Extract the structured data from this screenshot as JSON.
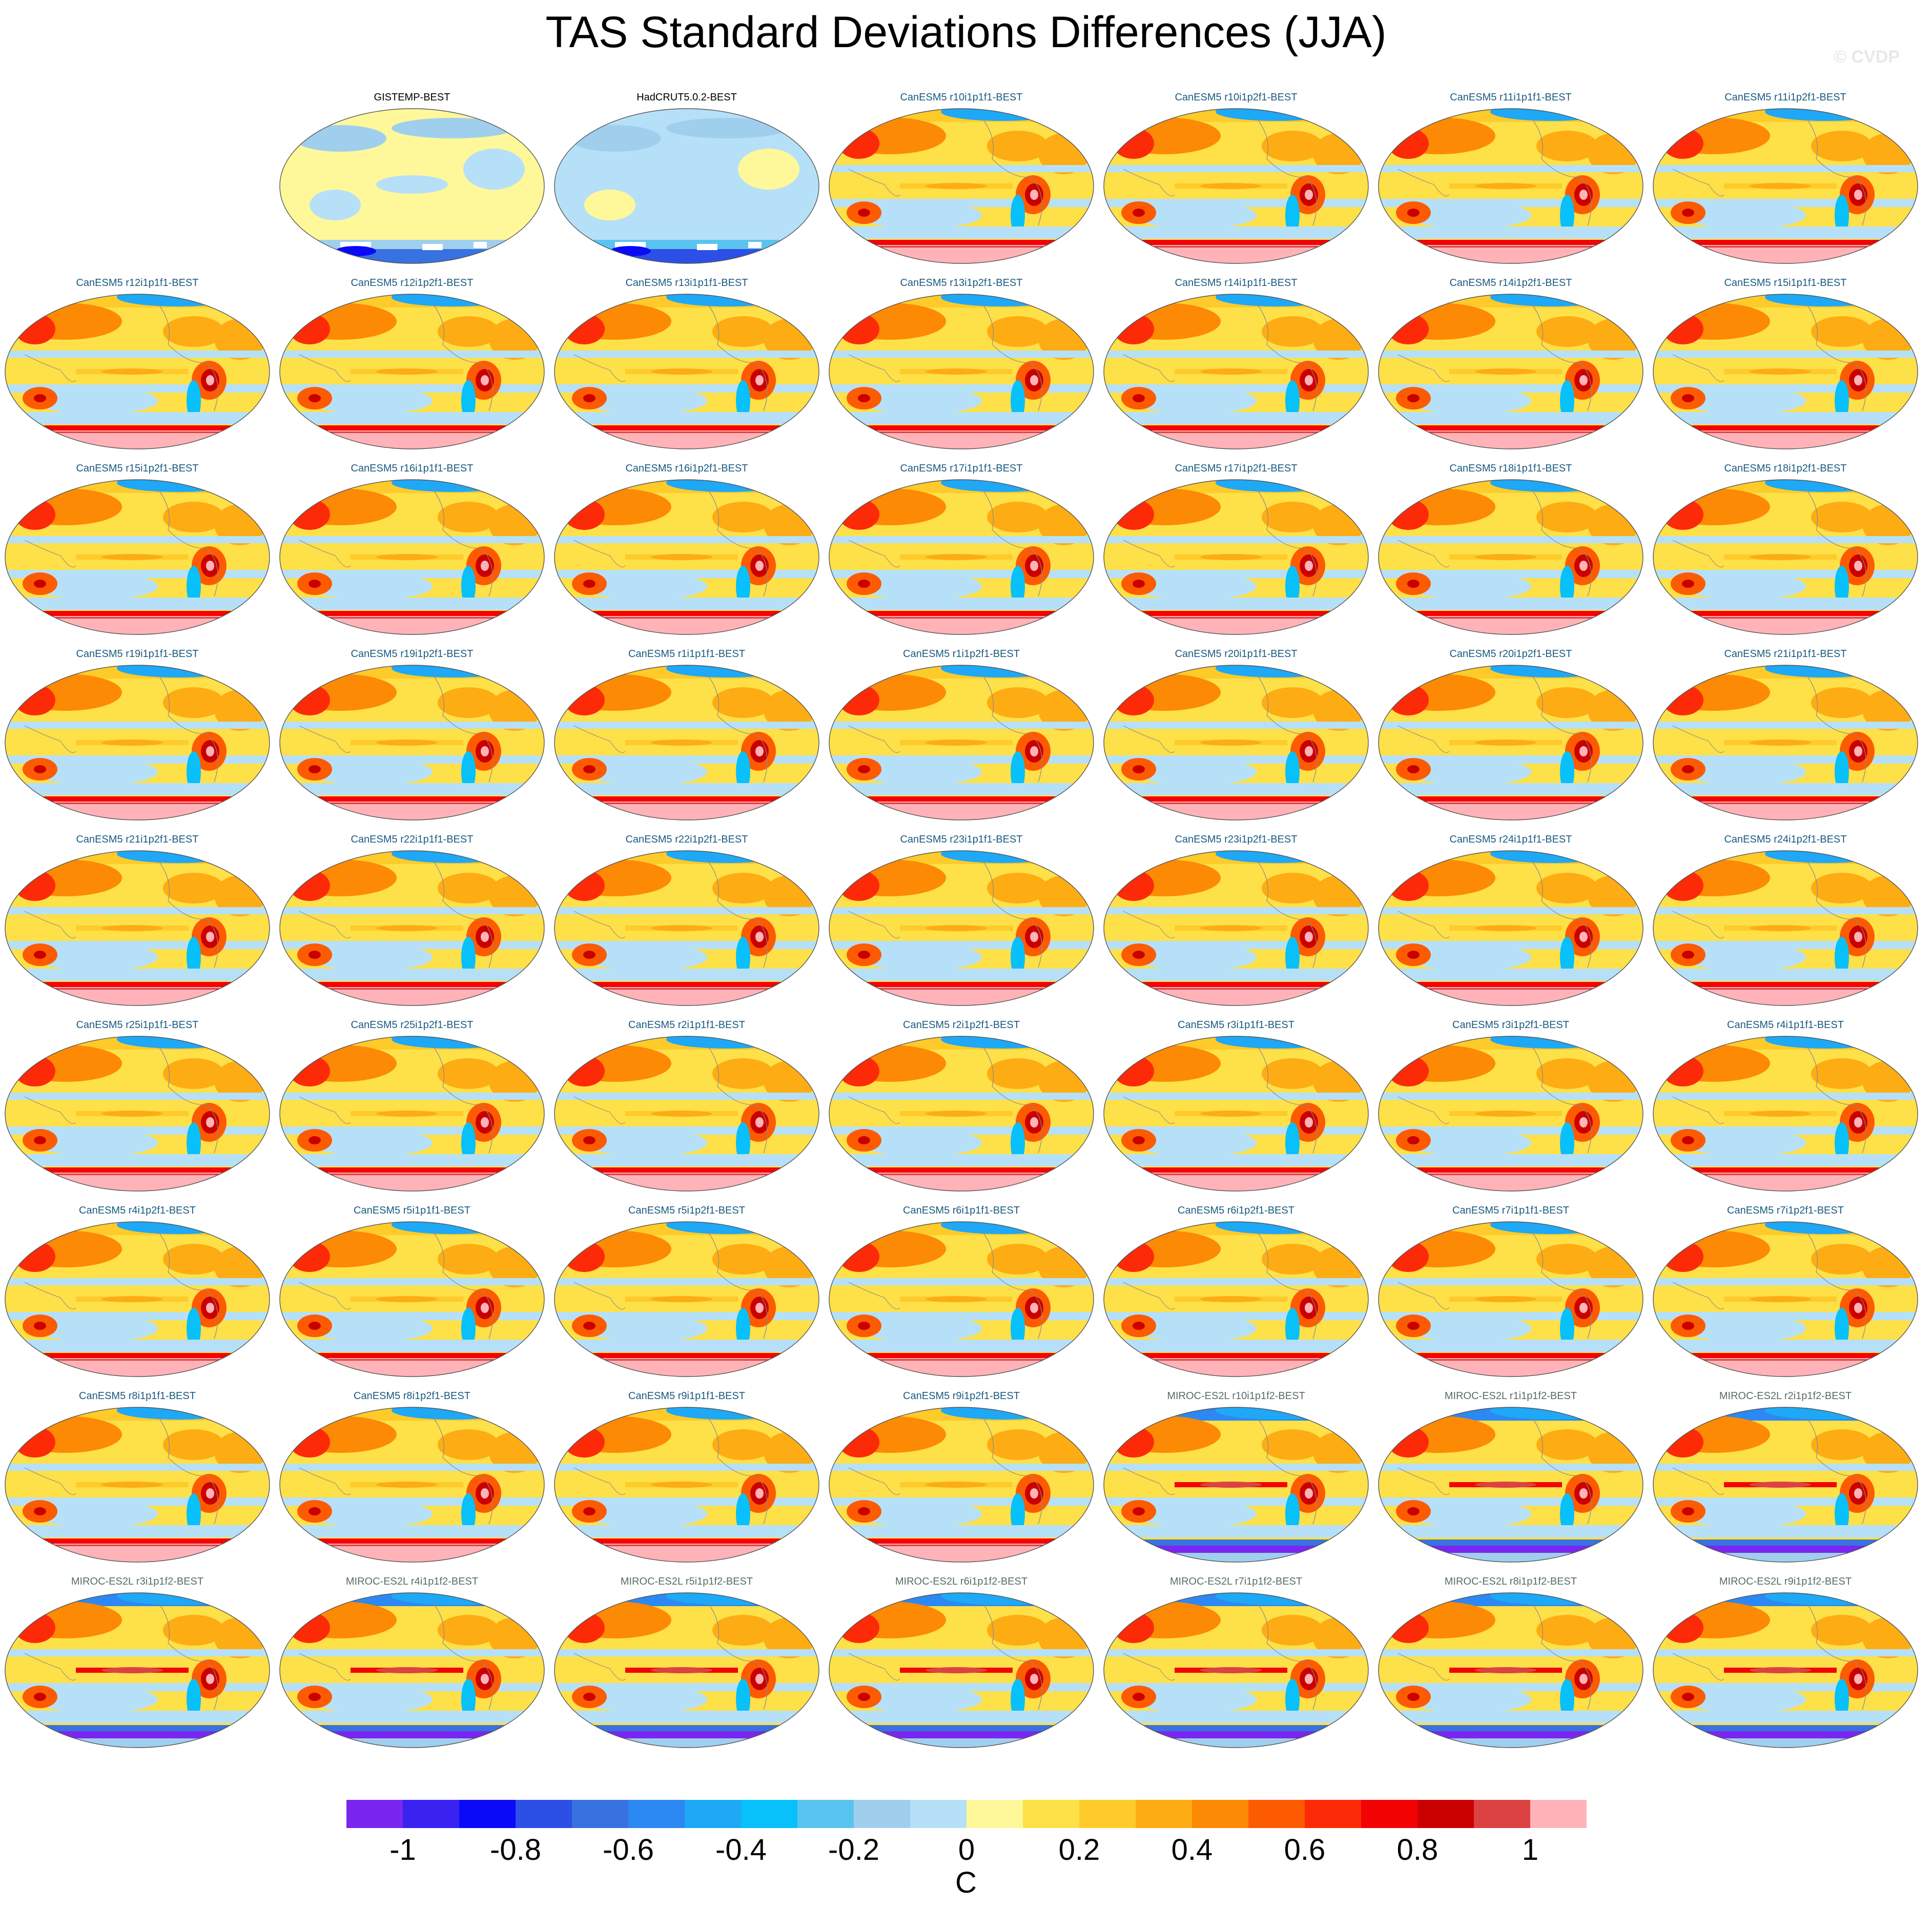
{
  "title": "TAS Standard Deviations Differences (JJA)",
  "copyright": "© CVDP",
  "colors": {
    "canesm_label": "#1a5a80",
    "miroc_label": "#5a6b6b",
    "obs_label": "#000000"
  },
  "panels": [
    {
      "label": "GISTEMP-BEST",
      "kind": "obs1"
    },
    {
      "label": "HadCRUT5.0.2-BEST",
      "kind": "obs2"
    },
    {
      "label": "CanESM5 r10i1p1f1-BEST",
      "kind": "canesm"
    },
    {
      "label": "CanESM5 r10i1p2f1-BEST",
      "kind": "canesm"
    },
    {
      "label": "CanESM5 r11i1p1f1-BEST",
      "kind": "canesm"
    },
    {
      "label": "CanESM5 r11i1p2f1-BEST",
      "kind": "canesm"
    },
    {
      "label": "CanESM5 r12i1p1f1-BEST",
      "kind": "canesm"
    },
    {
      "label": "CanESM5 r12i1p2f1-BEST",
      "kind": "canesm"
    },
    {
      "label": "CanESM5 r13i1p1f1-BEST",
      "kind": "canesm"
    },
    {
      "label": "CanESM5 r13i1p2f1-BEST",
      "kind": "canesm"
    },
    {
      "label": "CanESM5 r14i1p1f1-BEST",
      "kind": "canesm"
    },
    {
      "label": "CanESM5 r14i1p2f1-BEST",
      "kind": "canesm"
    },
    {
      "label": "CanESM5 r15i1p1f1-BEST",
      "kind": "canesm"
    },
    {
      "label": "CanESM5 r15i1p2f1-BEST",
      "kind": "canesm"
    },
    {
      "label": "CanESM5 r16i1p1f1-BEST",
      "kind": "canesm"
    },
    {
      "label": "CanESM5 r16i1p2f1-BEST",
      "kind": "canesm"
    },
    {
      "label": "CanESM5 r17i1p1f1-BEST",
      "kind": "canesm"
    },
    {
      "label": "CanESM5 r17i1p2f1-BEST",
      "kind": "canesm"
    },
    {
      "label": "CanESM5 r18i1p1f1-BEST",
      "kind": "canesm"
    },
    {
      "label": "CanESM5 r18i1p2f1-BEST",
      "kind": "canesm"
    },
    {
      "label": "CanESM5 r19i1p1f1-BEST",
      "kind": "canesm"
    },
    {
      "label": "CanESM5 r19i1p2f1-BEST",
      "kind": "canesm"
    },
    {
      "label": "CanESM5 r1i1p1f1-BEST",
      "kind": "canesm"
    },
    {
      "label": "CanESM5 r1i1p2f1-BEST",
      "kind": "canesm"
    },
    {
      "label": "CanESM5 r20i1p1f1-BEST",
      "kind": "canesm"
    },
    {
      "label": "CanESM5 r20i1p2f1-BEST",
      "kind": "canesm"
    },
    {
      "label": "CanESM5 r21i1p1f1-BEST",
      "kind": "canesm"
    },
    {
      "label": "CanESM5 r21i1p2f1-BEST",
      "kind": "canesm"
    },
    {
      "label": "CanESM5 r22i1p1f1-BEST",
      "kind": "canesm"
    },
    {
      "label": "CanESM5 r22i1p2f1-BEST",
      "kind": "canesm"
    },
    {
      "label": "CanESM5 r23i1p1f1-BEST",
      "kind": "canesm"
    },
    {
      "label": "CanESM5 r23i1p2f1-BEST",
      "kind": "canesm"
    },
    {
      "label": "CanESM5 r24i1p1f1-BEST",
      "kind": "canesm"
    },
    {
      "label": "CanESM5 r24i1p2f1-BEST",
      "kind": "canesm"
    },
    {
      "label": "CanESM5 r25i1p1f1-BEST",
      "kind": "canesm"
    },
    {
      "label": "CanESM5 r25i1p2f1-BEST",
      "kind": "canesm"
    },
    {
      "label": "CanESM5 r2i1p1f1-BEST",
      "kind": "canesm"
    },
    {
      "label": "CanESM5 r2i1p2f1-BEST",
      "kind": "canesm"
    },
    {
      "label": "CanESM5 r3i1p1f1-BEST",
      "kind": "canesm"
    },
    {
      "label": "CanESM5 r3i1p2f1-BEST",
      "kind": "canesm"
    },
    {
      "label": "CanESM5 r4i1p1f1-BEST",
      "kind": "canesm"
    },
    {
      "label": "CanESM5 r4i1p2f1-BEST",
      "kind": "canesm"
    },
    {
      "label": "CanESM5 r5i1p1f1-BEST",
      "kind": "canesm"
    },
    {
      "label": "CanESM5 r5i1p2f1-BEST",
      "kind": "canesm"
    },
    {
      "label": "CanESM5 r6i1p1f1-BEST",
      "kind": "canesm"
    },
    {
      "label": "CanESM5 r6i1p2f1-BEST",
      "kind": "canesm"
    },
    {
      "label": "CanESM5 r7i1p1f1-BEST",
      "kind": "canesm"
    },
    {
      "label": "CanESM5 r7i1p2f1-BEST",
      "kind": "canesm"
    },
    {
      "label": "CanESM5 r8i1p1f1-BEST",
      "kind": "canesm"
    },
    {
      "label": "CanESM5 r8i1p2f1-BEST",
      "kind": "canesm"
    },
    {
      "label": "CanESM5 r9i1p1f1-BEST",
      "kind": "canesm"
    },
    {
      "label": "CanESM5 r9i1p2f1-BEST",
      "kind": "canesm"
    },
    {
      "label": "MIROC-ES2L r10i1p1f2-BEST",
      "kind": "miroc"
    },
    {
      "label": "MIROC-ES2L r1i1p1f2-BEST",
      "kind": "miroc"
    },
    {
      "label": "MIROC-ES2L r2i1p1f2-BEST",
      "kind": "miroc"
    },
    {
      "label": "MIROC-ES2L r3i1p1f2-BEST",
      "kind": "miroc"
    },
    {
      "label": "MIROC-ES2L r4i1p1f2-BEST",
      "kind": "miroc"
    },
    {
      "label": "MIROC-ES2L r5i1p1f2-BEST",
      "kind": "miroc"
    },
    {
      "label": "MIROC-ES2L r6i1p1f2-BEST",
      "kind": "miroc"
    },
    {
      "label": "MIROC-ES2L r7i1p1f2-BEST",
      "kind": "miroc"
    },
    {
      "label": "MIROC-ES2L r8i1p1f2-BEST",
      "kind": "miroc"
    },
    {
      "label": "MIROC-ES2L r9i1p1f2-BEST",
      "kind": "miroc"
    }
  ],
  "colorbar": {
    "colors": [
      "#7a26f0",
      "#3a22f0",
      "#0a0af8",
      "#2c4fe6",
      "#3872e0",
      "#2c88f2",
      "#1ea8f6",
      "#08c0fa",
      "#5ac4f0",
      "#a0cfee",
      "#b6e0f8",
      "#fff89a",
      "#fee048",
      "#fecb2a",
      "#fdac14",
      "#fd8a04",
      "#fd5b02",
      "#fd2a08",
      "#f30303",
      "#ca0000",
      "#dc4242",
      "#ffb3b8"
    ],
    "ticks": [
      "-1",
      "-0.8",
      "-0.6",
      "-0.4",
      "-0.2",
      "0",
      "0.2",
      "0.4",
      "0.6",
      "0.8",
      "1"
    ],
    "units": "C"
  }
}
